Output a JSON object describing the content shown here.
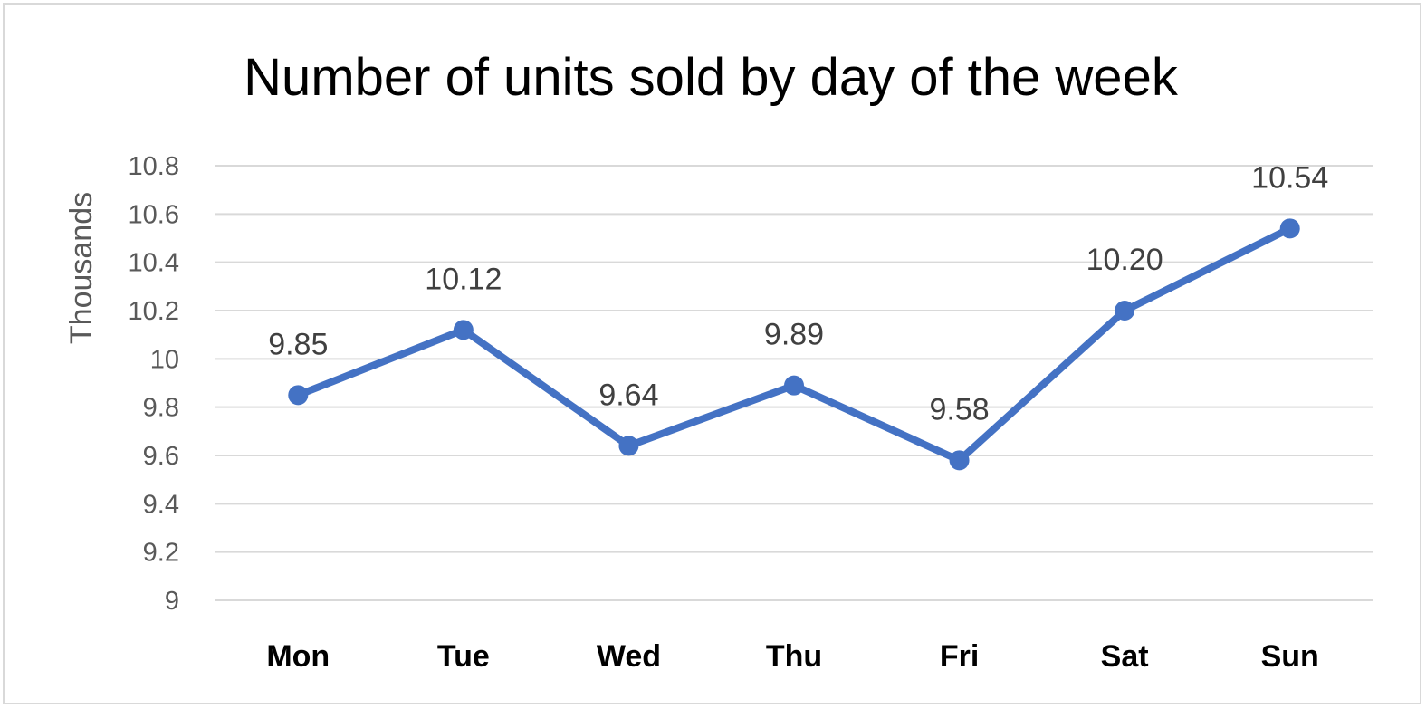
{
  "chart_data": {
    "type": "line",
    "title": "Number of units sold by day of the week",
    "xlabel": "",
    "ylabel": "Thousands",
    "categories": [
      "Mon",
      "Tue",
      "Wed",
      "Thu",
      "Fri",
      "Sat",
      "Sun"
    ],
    "series": [
      {
        "values": [
          9.85,
          10.12,
          9.64,
          9.89,
          9.58,
          10.2,
          10.54
        ],
        "data_labels": [
          "9.85",
          "10.12",
          "9.64",
          "9.89",
          "9.58",
          "10.20",
          "10.54"
        ],
        "color": "#4472c4"
      }
    ],
    "ylim": [
      9,
      10.8
    ],
    "yticks": [
      9,
      9.2,
      9.4,
      9.6,
      9.8,
      10,
      10.2,
      10.4,
      10.6,
      10.8
    ],
    "ytick_labels": [
      "9",
      "9.2",
      "9.4",
      "9.6",
      "9.8",
      "10",
      "10.2",
      "10.4",
      "10.6",
      "10.8"
    ],
    "grid": true,
    "legend": "none"
  }
}
